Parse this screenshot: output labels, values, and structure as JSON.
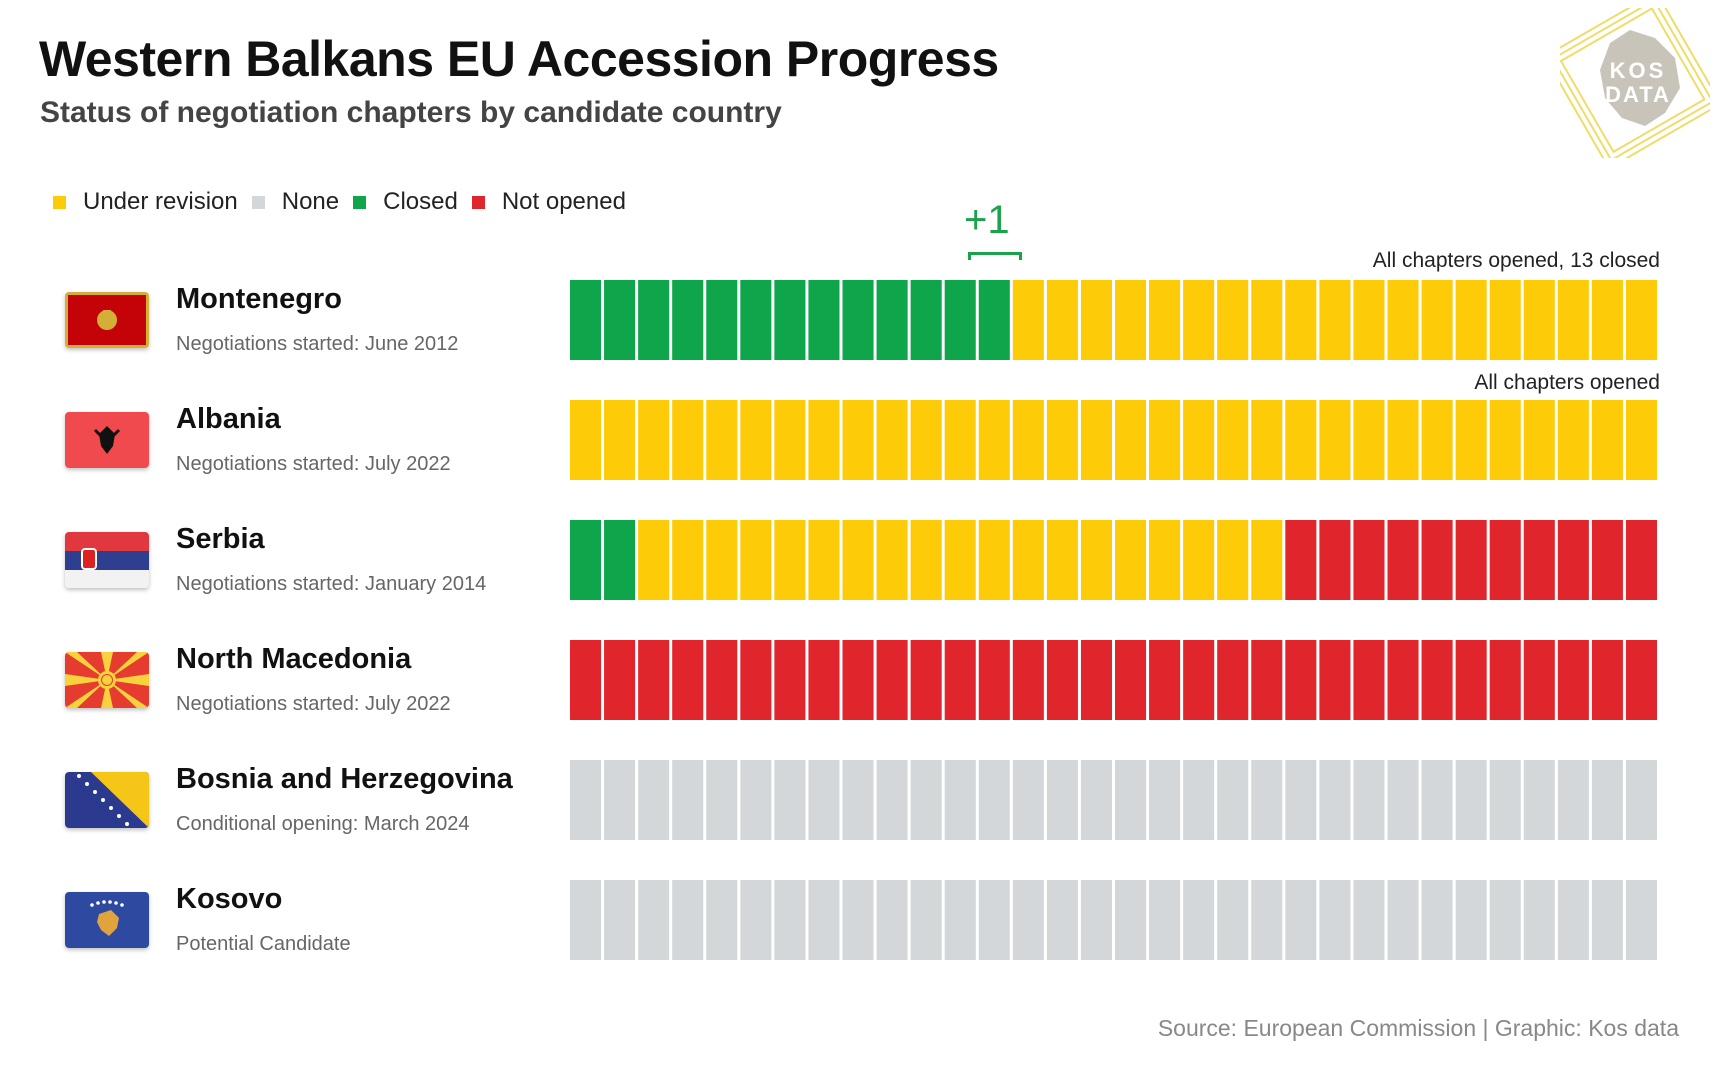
{
  "title": "Western Balkans EU Accession Progress",
  "subtitle": "Status of negotiation chapters by candidate country",
  "logo_text": "KOS DATA",
  "legend": [
    {
      "label": "Under revision",
      "color": "#fdcb08"
    },
    {
      "label": "None",
      "color": "#d4d7da"
    },
    {
      "label": "Closed",
      "color": "#0fa54b"
    },
    {
      "label": "Not opened",
      "color": "#e0262c"
    }
  ],
  "annotation": {
    "text": "+1",
    "color": "#1aa34a"
  },
  "source": "Source: European Commission | Graphic: Kos data",
  "chart_data": {
    "type": "waffle",
    "title": "Western Balkans EU Accession Progress",
    "subtitle": "Status of negotiation chapters by candidate country",
    "chapters_total": 32,
    "statuses": {
      "closed": {
        "label": "Closed",
        "color": "#0fa54b"
      },
      "revision": {
        "label": "Under revision",
        "color": "#fdcb08"
      },
      "none": {
        "label": "None",
        "color": "#d4d7da"
      },
      "notopened": {
        "label": "Not opened",
        "color": "#e0262c"
      }
    },
    "countries": [
      {
        "name": "Montenegro",
        "sub": "Negotiations started: June 2012",
        "note": "All chapters opened, 13 closed",
        "flag": "montenegro-flag",
        "segments": [
          {
            "status": "closed",
            "count": 13
          },
          {
            "status": "revision",
            "count": 19
          }
        ]
      },
      {
        "name": "Albania",
        "sub": "Negotiations started: July 2022",
        "note": "All chapters opened",
        "flag": "albania-flag",
        "segments": [
          {
            "status": "revision",
            "count": 32
          }
        ]
      },
      {
        "name": "Serbia",
        "sub": "Negotiations started: January 2014",
        "note": "",
        "flag": "serbia-flag",
        "segments": [
          {
            "status": "closed",
            "count": 2
          },
          {
            "status": "revision",
            "count": 19
          },
          {
            "status": "notopened",
            "count": 11
          }
        ]
      },
      {
        "name": "North Macedonia",
        "sub": "Negotiations started: July 2022",
        "note": "",
        "flag": "north-macedonia-flag",
        "segments": [
          {
            "status": "notopened",
            "count": 32
          }
        ]
      },
      {
        "name": "Bosnia and Herzegovina",
        "sub": "Conditional opening: March 2024",
        "note": "",
        "flag": "bosnia-flag",
        "segments": [
          {
            "status": "none",
            "count": 32
          }
        ]
      },
      {
        "name": "Kosovo",
        "sub": "Potential Candidate",
        "note": "",
        "flag": "kosovo-flag",
        "segments": [
          {
            "status": "none",
            "count": 32
          }
        ]
      }
    ]
  }
}
